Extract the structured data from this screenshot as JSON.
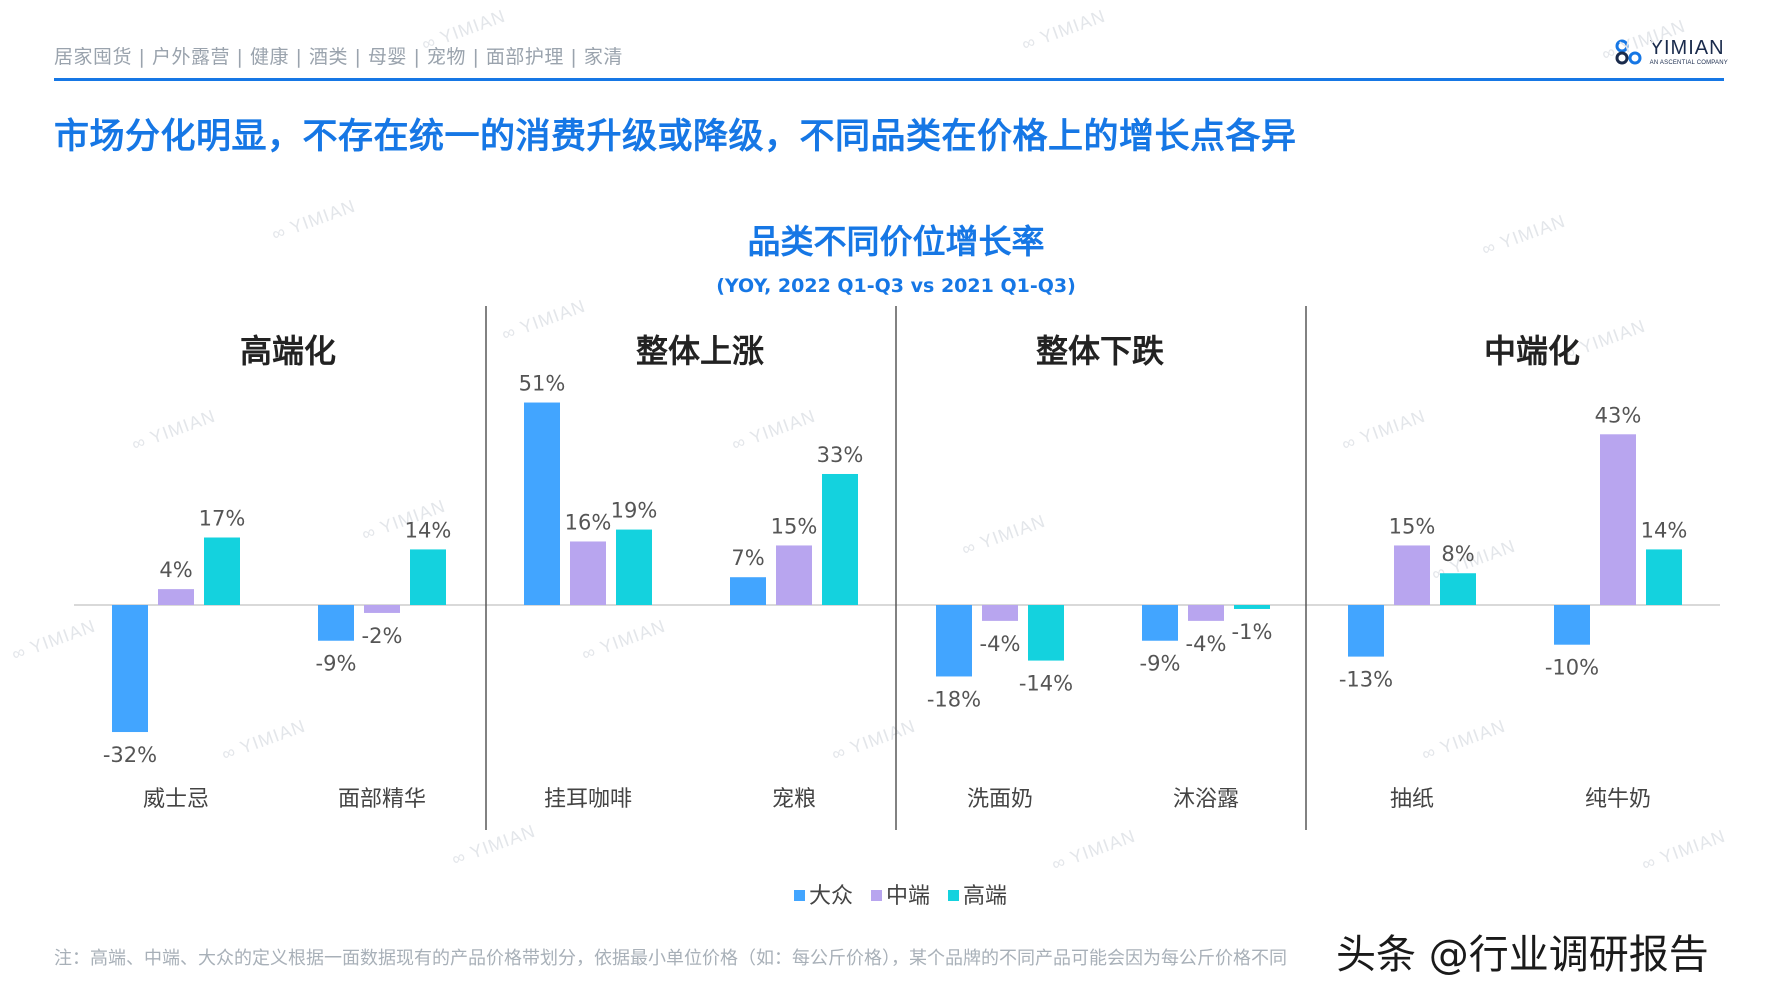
{
  "header": {
    "breadcrumb": "居家囤货 | 户外露营 | 健康 | 酒类 | 母婴 | 宠物 | 面部护理 | 家清",
    "logo_name": "YIMIAN",
    "logo_sub": "AN ASCENTIAL COMPANY",
    "headline": "市场分化明显，不存在统一的消费升级或降级，不同品类在价格上的增长点各异"
  },
  "watermark_text": "YIMIAN",
  "footnote": "注：高端、中端、大众的定义根据一面数据现有的产品价格带划分，依据最小单位价格（如：每公斤价格），某个品牌的不同产品可能会因为每公斤价格不同",
  "credit": "头条 @行业调研报告",
  "chart_data": {
    "type": "bar",
    "title": "品类不同价位增长率",
    "subtitle": "(YOY, 2022 Q1-Q3 vs 2021 Q1-Q3)",
    "groups": [
      "高端化",
      "整体上涨",
      "整体下跌",
      "中端化"
    ],
    "categories": [
      "威士忌",
      "面部精华",
      "挂耳咖啡",
      "宠粮",
      "洗面奶",
      "沐浴露",
      "抽纸",
      "纯牛奶"
    ],
    "category_group": [
      0,
      0,
      1,
      1,
      2,
      2,
      3,
      3
    ],
    "series": [
      {
        "name": "大众",
        "color": "#42a5ff",
        "values": [
          -32,
          -9,
          51,
          7,
          -18,
          -9,
          -13,
          -10
        ]
      },
      {
        "name": "中端",
        "color": "#b8a5ef",
        "values": [
          4,
          -2,
          16,
          15,
          -4,
          -4,
          15,
          43
        ]
      },
      {
        "name": "高端",
        "color": "#14d2de",
        "values": [
          17,
          14,
          19,
          33,
          -14,
          -1,
          8,
          14
        ]
      }
    ],
    "value_suffix": "%",
    "grid": false,
    "legend_position": "bottom"
  }
}
